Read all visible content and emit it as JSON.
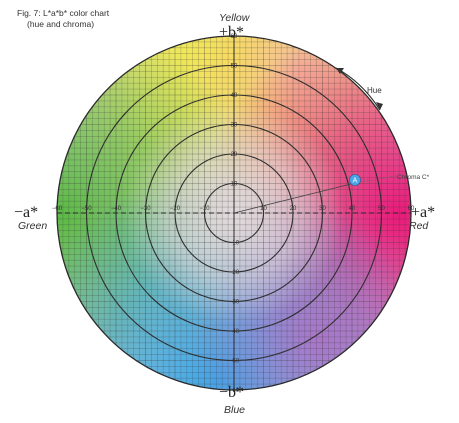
{
  "figure": {
    "title_line1": "Fig. 7: L*a*b* color chart",
    "title_line2": "(hue and chroma)"
  },
  "axes": {
    "top": {
      "sign": "+b*",
      "name": "Yellow"
    },
    "bottom": {
      "sign": "−b*",
      "name": "Blue"
    },
    "left": {
      "sign": "−a*",
      "name": "Green"
    },
    "right": {
      "sign": "+a*",
      "name": "Red"
    }
  },
  "annotations": {
    "hue": "Hue",
    "chroma": "Chroma C*",
    "marker": "A"
  },
  "ticks": {
    "vertical_pos": [
      "60",
      "50",
      "40",
      "30",
      "20",
      "10"
    ],
    "vertical_neg": [
      "−10",
      "−20",
      "−30",
      "−40",
      "−50",
      "−60"
    ],
    "horizontal_pos": [
      "10",
      "20",
      "30",
      "40",
      "50",
      "60"
    ],
    "horizontal_neg": [
      "−10",
      "−20",
      "−30",
      "−40",
      "−50",
      "−60"
    ]
  },
  "colors": {
    "yellow": "#f4ec3c",
    "red": "#e8207c",
    "green": "#6cc04a",
    "blue": "#40a8e8",
    "center": "#e6dee0",
    "grid": "#3a3a3a",
    "marker_fill": "#4aa6e6"
  }
}
